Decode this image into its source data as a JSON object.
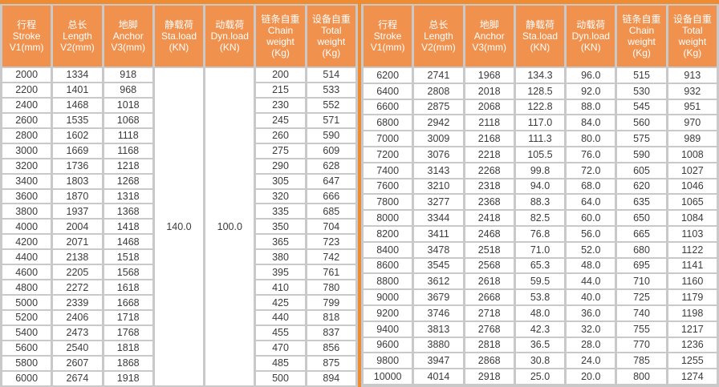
{
  "colors": {
    "accent_stripe": "#ee8c33",
    "header_bg": "#f0914d",
    "header_text": "#ffffff",
    "grid_bg": "#c9c9c9",
    "cell_text": "#3b3b3b"
  },
  "chart_data": {
    "type": "table",
    "title": "",
    "headers": [
      {
        "lines": [
          "行程",
          "Stroke",
          "V1(mm)"
        ]
      },
      {
        "lines": [
          "总长",
          "Length",
          "V2(mm)"
        ]
      },
      {
        "lines": [
          "地脚",
          "Anchor",
          "V3(mm)"
        ]
      },
      {
        "lines": [
          "静载荷",
          "Sta.load",
          "(KN)"
        ]
      },
      {
        "lines": [
          "动载荷",
          "Dyn.load",
          "(KN)"
        ]
      },
      {
        "lines": [
          "链条自重",
          "Chain",
          "weight",
          "(Kg)"
        ]
      },
      {
        "lines": [
          "设备自重",
          "Total",
          "weight",
          "(Kg)"
        ]
      }
    ],
    "left_table": {
      "static_load_kn": "140.0",
      "dynamic_load_kn": "100.0",
      "rows": [
        [
          "2000",
          "1334",
          "918",
          "200",
          "514"
        ],
        [
          "2200",
          "1401",
          "968",
          "215",
          "533"
        ],
        [
          "2400",
          "1468",
          "1018",
          "230",
          "552"
        ],
        [
          "2600",
          "1535",
          "1068",
          "245",
          "571"
        ],
        [
          "2800",
          "1602",
          "1118",
          "260",
          "590"
        ],
        [
          "3000",
          "1669",
          "1168",
          "275",
          "609"
        ],
        [
          "3200",
          "1736",
          "1218",
          "290",
          "628"
        ],
        [
          "3400",
          "1803",
          "1268",
          "305",
          "647"
        ],
        [
          "3600",
          "1870",
          "1318",
          "320",
          "666"
        ],
        [
          "3800",
          "1937",
          "1368",
          "335",
          "685"
        ],
        [
          "4000",
          "2004",
          "1418",
          "350",
          "704"
        ],
        [
          "4200",
          "2071",
          "1468",
          "365",
          "723"
        ],
        [
          "4400",
          "2138",
          "1518",
          "380",
          "742"
        ],
        [
          "4600",
          "2205",
          "1568",
          "395",
          "761"
        ],
        [
          "4800",
          "2272",
          "1618",
          "410",
          "780"
        ],
        [
          "5000",
          "2339",
          "1668",
          "425",
          "799"
        ],
        [
          "5200",
          "2406",
          "1718",
          "440",
          "818"
        ],
        [
          "5400",
          "2473",
          "1768",
          "455",
          "837"
        ],
        [
          "5600",
          "2540",
          "1818",
          "470",
          "856"
        ],
        [
          "5800",
          "2607",
          "1868",
          "485",
          "875"
        ],
        [
          "6000",
          "2674",
          "1918",
          "500",
          "894"
        ]
      ]
    },
    "right_table": {
      "rows": [
        [
          "6200",
          "2741",
          "1968",
          "134.3",
          "96.0",
          "515",
          "913"
        ],
        [
          "6400",
          "2808",
          "2018",
          "128.5",
          "92.0",
          "530",
          "932"
        ],
        [
          "6600",
          "2875",
          "2068",
          "122.8",
          "88.0",
          "545",
          "951"
        ],
        [
          "6800",
          "2942",
          "2118",
          "117.0",
          "84.0",
          "560",
          "970"
        ],
        [
          "7000",
          "3009",
          "2168",
          "111.3",
          "80.0",
          "575",
          "989"
        ],
        [
          "7200",
          "3076",
          "2218",
          "105.5",
          "76.0",
          "590",
          "1008"
        ],
        [
          "7400",
          "3143",
          "2268",
          "99.8",
          "72.0",
          "605",
          "1027"
        ],
        [
          "7600",
          "3210",
          "2318",
          "94.0",
          "68.0",
          "620",
          "1046"
        ],
        [
          "7800",
          "3277",
          "2368",
          "88.3",
          "64.0",
          "635",
          "1065"
        ],
        [
          "8000",
          "3344",
          "2418",
          "82.5",
          "60.0",
          "650",
          "1084"
        ],
        [
          "8200",
          "3411",
          "2468",
          "76.8",
          "56.0",
          "665",
          "1103"
        ],
        [
          "8400",
          "3478",
          "2518",
          "71.0",
          "52.0",
          "680",
          "1122"
        ],
        [
          "8600",
          "3545",
          "2568",
          "65.3",
          "48.0",
          "695",
          "1141"
        ],
        [
          "8800",
          "3612",
          "2618",
          "59.5",
          "44.0",
          "710",
          "1160"
        ],
        [
          "9000",
          "3679",
          "2668",
          "53.8",
          "40.0",
          "725",
          "1179"
        ],
        [
          "9200",
          "3746",
          "2718",
          "48.0",
          "36.0",
          "740",
          "1198"
        ],
        [
          "9400",
          "3813",
          "2768",
          "42.3",
          "32.0",
          "755",
          "1217"
        ],
        [
          "9600",
          "3880",
          "2818",
          "36.5",
          "28.0",
          "770",
          "1236"
        ],
        [
          "9800",
          "3947",
          "2868",
          "30.8",
          "24.0",
          "785",
          "1255"
        ],
        [
          "10000",
          "4014",
          "2918",
          "25.0",
          "20.0",
          "800",
          "1274"
        ],
        [
          "",
          "",
          "",
          "",
          "",
          "",
          ""
        ]
      ]
    }
  }
}
